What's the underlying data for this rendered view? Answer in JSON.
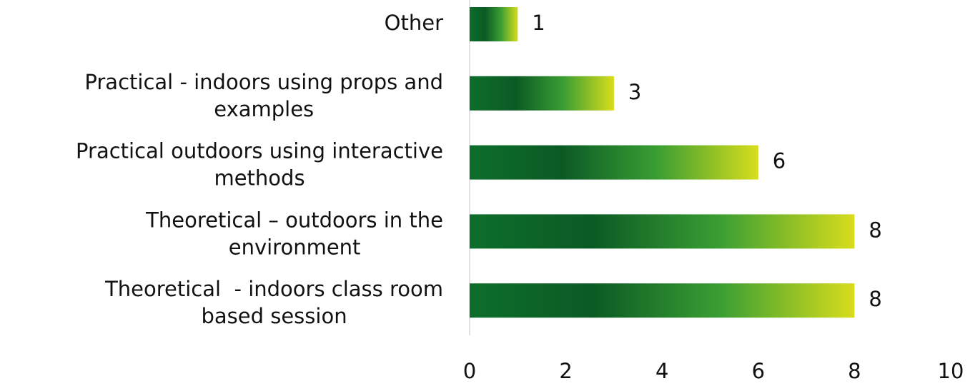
{
  "chart_data": {
    "type": "bar",
    "orientation": "horizontal",
    "categories": [
      "Other",
      "Practical - indoors using props and examples",
      "Practical outdoors using interactive methods",
      "Theoretical – outdoors in the environment",
      "Theoretical  - indoors class room based session"
    ],
    "values": [
      1,
      3,
      6,
      8,
      8
    ],
    "color_gradient": [
      "#0d6e2b",
      "#0b5a24",
      "#3a9e33",
      "#d8dd1c"
    ],
    "xlim": [
      0,
      10
    ],
    "xticks": [
      0,
      2,
      4,
      6,
      8,
      10
    ],
    "grid": false
  }
}
